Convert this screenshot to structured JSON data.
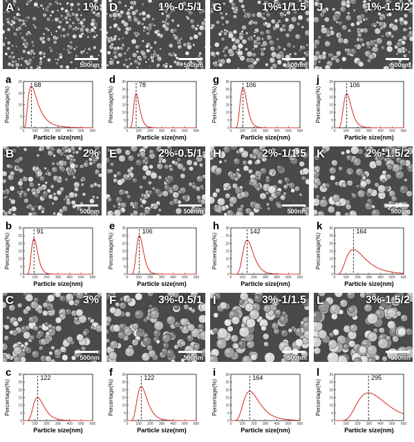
{
  "figure": {
    "sem_scale_bar": "500nm",
    "sem_panels": [
      {
        "letter": "A",
        "condition": "1%"
      },
      {
        "letter": "D",
        "condition": "1%-0.5/1"
      },
      {
        "letter": "G",
        "condition": "1%-1/1.5"
      },
      {
        "letter": "J",
        "condition": "1%-1.5/2"
      },
      {
        "letter": "B",
        "condition": "2%"
      },
      {
        "letter": "E",
        "condition": "2%-0.5/1"
      },
      {
        "letter": "H",
        "condition": "2%-1/1.5"
      },
      {
        "letter": "K",
        "condition": "2%-1.5/2"
      },
      {
        "letter": "C",
        "condition": "3%"
      },
      {
        "letter": "F",
        "condition": "3%-0.5/1"
      },
      {
        "letter": "I",
        "condition": "3%-1/1.5"
      },
      {
        "letter": "L",
        "condition": "3%-1.5/2"
      }
    ]
  },
  "chart_data": [
    {
      "type": "line",
      "letter": "a",
      "peak_label": "68",
      "peak_x": 68,
      "peak_y": 18,
      "sigma": 0.6,
      "xlim": [
        0,
        600
      ],
      "ylim": [
        0,
        20
      ],
      "yticks": [
        0,
        5,
        10,
        15,
        20
      ],
      "xticks": [
        0,
        100,
        200,
        300,
        400,
        500,
        600
      ],
      "xlabel": "Particle size(nm)",
      "ylabel": "Percentage(%)"
    },
    {
      "type": "line",
      "letter": "d",
      "peak_label": "78",
      "peak_x": 78,
      "peak_y": 22,
      "sigma": 0.32,
      "xlim": [
        0,
        600
      ],
      "ylim": [
        0,
        30
      ],
      "yticks": [
        0,
        5,
        10,
        15,
        20,
        25,
        30
      ],
      "xticks": [
        0,
        100,
        200,
        300,
        400,
        500,
        600
      ],
      "xlabel": "Particle size(nm)",
      "ylabel": "Percentage(%)"
    },
    {
      "type": "line",
      "letter": "g",
      "peak_label": "106",
      "peak_x": 106,
      "peak_y": 26,
      "sigma": 0.28,
      "xlim": [
        0,
        600
      ],
      "ylim": [
        0,
        30
      ],
      "yticks": [
        0,
        5,
        10,
        15,
        20,
        25,
        30
      ],
      "xticks": [
        0,
        100,
        200,
        300,
        400,
        500,
        600
      ],
      "xlabel": "Particle size(nm)",
      "ylabel": "Percentage(%)"
    },
    {
      "type": "line",
      "letter": "j",
      "peak_label": "106",
      "peak_x": 106,
      "peak_y": 22,
      "sigma": 0.32,
      "xlim": [
        0,
        600
      ],
      "ylim": [
        0,
        30
      ],
      "yticks": [
        0,
        5,
        10,
        15,
        20,
        25,
        30
      ],
      "xticks": [
        0,
        100,
        200,
        300,
        400,
        500,
        600
      ],
      "xlabel": "Particle size(nm)",
      "ylabel": "Percentage(%)"
    },
    {
      "type": "line",
      "letter": "b",
      "peak_label": "91",
      "peak_x": 91,
      "peak_y": 23,
      "sigma": 0.3,
      "xlim": [
        0,
        600
      ],
      "ylim": [
        0,
        30
      ],
      "yticks": [
        0,
        5,
        10,
        15,
        20,
        25,
        30
      ],
      "xticks": [
        0,
        100,
        200,
        300,
        400,
        500,
        600
      ],
      "xlabel": "Particle size(nm)",
      "ylabel": "Percentage(%)"
    },
    {
      "type": "line",
      "letter": "e",
      "peak_label": "106",
      "peak_x": 106,
      "peak_y": 25,
      "sigma": 0.28,
      "xlim": [
        0,
        600
      ],
      "ylim": [
        0,
        30
      ],
      "yticks": [
        0,
        5,
        10,
        15,
        20,
        25,
        30
      ],
      "xticks": [
        0,
        100,
        200,
        300,
        400,
        500,
        600
      ],
      "xlabel": "Particle size(nm)",
      "ylabel": "Percentage(%)"
    },
    {
      "type": "line",
      "letter": "h",
      "peak_label": "142",
      "peak_x": 142,
      "peak_y": 22,
      "sigma": 0.32,
      "xlim": [
        0,
        600
      ],
      "ylim": [
        0,
        30
      ],
      "yticks": [
        0,
        5,
        10,
        15,
        20,
        25,
        30
      ],
      "xticks": [
        0,
        100,
        200,
        300,
        400,
        500,
        600
      ],
      "xlabel": "Particle size(nm)",
      "ylabel": "Percentage(%)"
    },
    {
      "type": "line",
      "letter": "k",
      "peak_label": "164",
      "peak_x": 164,
      "peak_y": 16,
      "sigma": 0.5,
      "xlim": [
        0,
        600
      ],
      "ylim": [
        0,
        30
      ],
      "yticks": [
        0,
        5,
        10,
        15,
        20,
        25,
        30
      ],
      "xticks": [
        0,
        100,
        200,
        300,
        400,
        500,
        600
      ],
      "xlabel": "Particle size(nm)",
      "ylabel": "Percentage(%)"
    },
    {
      "type": "line",
      "letter": "c",
      "peak_label": "122",
      "peak_x": 122,
      "peak_y": 15,
      "sigma": 0.38,
      "xlim": [
        0,
        600
      ],
      "ylim": [
        0,
        30
      ],
      "yticks": [
        0,
        5,
        10,
        15,
        20,
        25,
        30
      ],
      "xticks": [
        0,
        100,
        200,
        300,
        400,
        500,
        600
      ],
      "xlabel": "Particle size(nm)",
      "ylabel": "Percentage(%)"
    },
    {
      "type": "line",
      "letter": "f",
      "peak_label": "122",
      "peak_x": 122,
      "peak_y": 22,
      "sigma": 0.36,
      "xlim": [
        0,
        600
      ],
      "ylim": [
        0,
        30
      ],
      "yticks": [
        0,
        5,
        10,
        15,
        20,
        25,
        30
      ],
      "xticks": [
        0,
        100,
        200,
        300,
        400,
        500,
        600
      ],
      "xlabel": "Particle size(nm)",
      "ylabel": "Percentage(%)"
    },
    {
      "type": "line",
      "letter": "i",
      "peak_label": "164",
      "peak_x": 164,
      "peak_y": 19,
      "sigma": 0.42,
      "xlim": [
        0,
        600
      ],
      "ylim": [
        0,
        30
      ],
      "yticks": [
        0,
        5,
        10,
        15,
        20,
        25,
        30
      ],
      "xticks": [
        0,
        100,
        200,
        300,
        400,
        500,
        600
      ],
      "xlabel": "Particle size(nm)",
      "ylabel": "Percentage(%)"
    },
    {
      "type": "line",
      "letter": "l",
      "peak_label": "295",
      "peak_x": 295,
      "peak_y": 18,
      "sigma": 0.42,
      "xlim": [
        0,
        600
      ],
      "ylim": [
        0,
        30
      ],
      "yticks": [
        0,
        5,
        10,
        15,
        20,
        25,
        30
      ],
      "xticks": [
        0,
        100,
        200,
        300,
        400,
        500,
        600
      ],
      "xlabel": "Particle size(nm)",
      "ylabel": "Percentage(%)"
    }
  ]
}
